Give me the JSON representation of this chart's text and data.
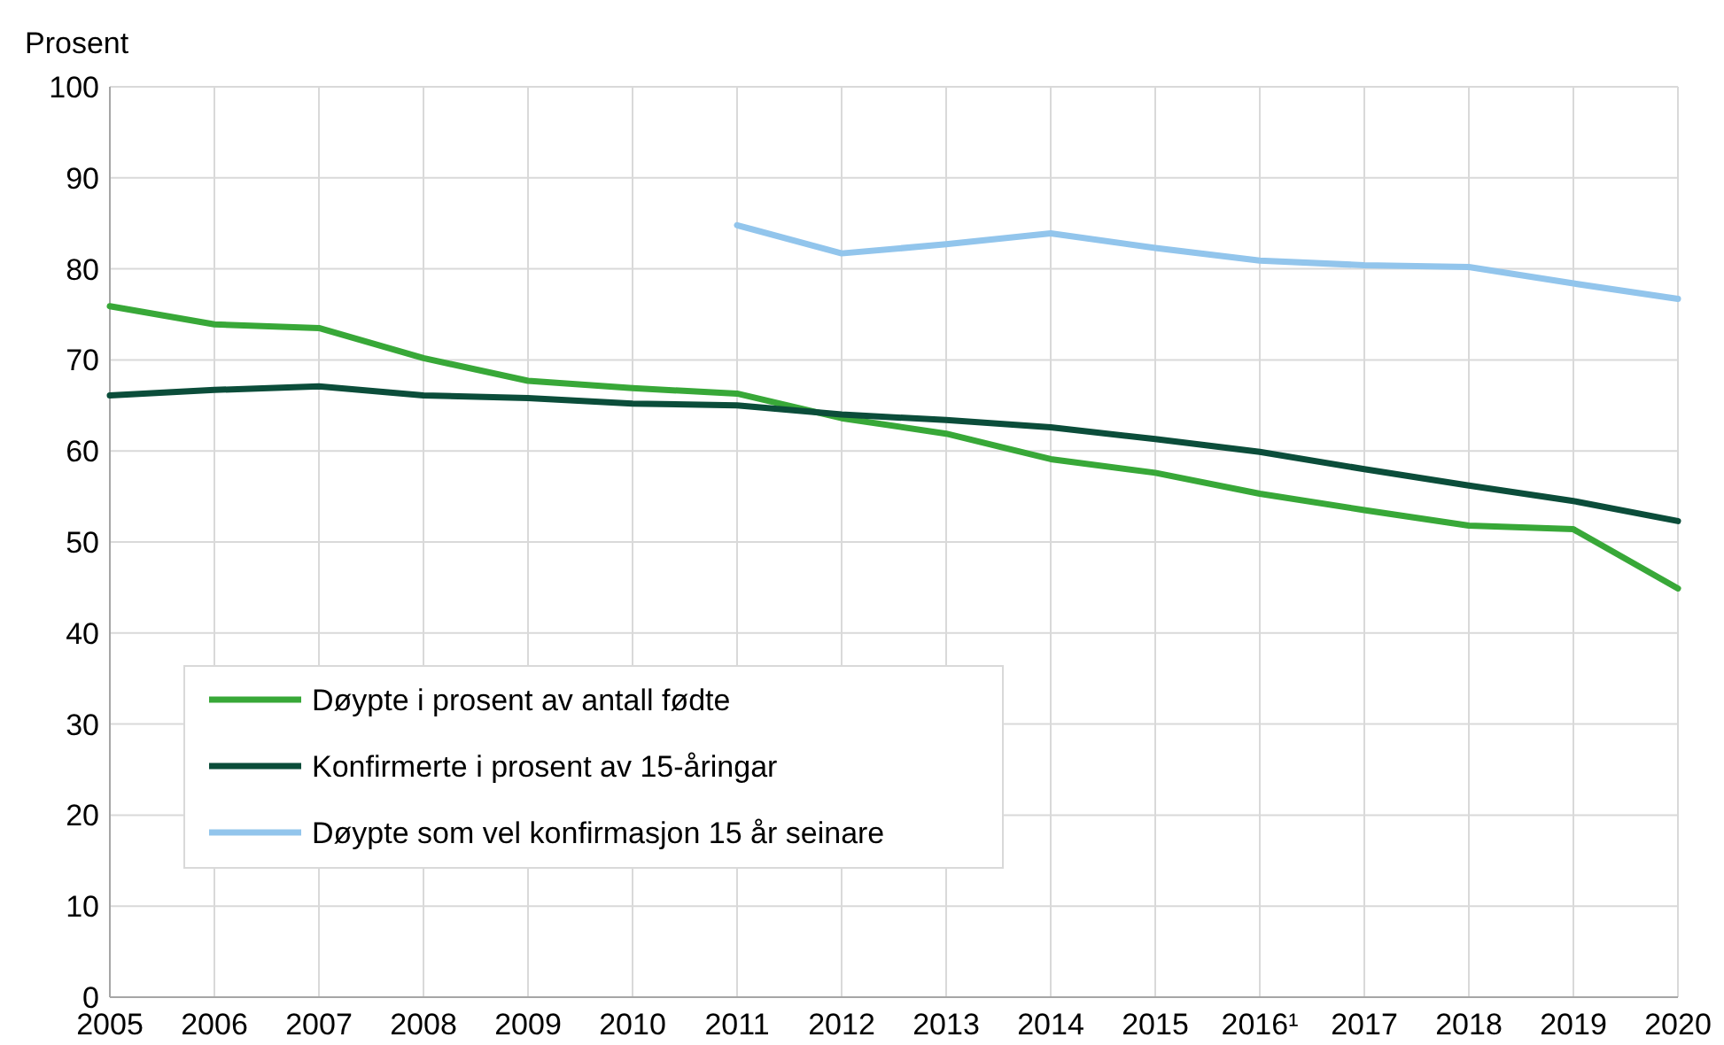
{
  "chart_data": {
    "type": "line",
    "ylabel": "Prosent",
    "categories": [
      "2005",
      "2006",
      "2007",
      "2008",
      "2009",
      "2010",
      "2011",
      "2012",
      "2013",
      "2014",
      "2015",
      "2016¹",
      "2017",
      "2018",
      "2019",
      "2020"
    ],
    "series": [
      {
        "name": "Døypte i prosent av antall fødte",
        "color": "#38a838",
        "values": [
          75.9,
          73.9,
          73.5,
          70.2,
          67.7,
          66.9,
          66.3,
          63.6,
          61.9,
          59.1,
          57.6,
          55.3,
          53.5,
          51.8,
          51.4,
          44.9
        ]
      },
      {
        "name": "Konfirmerte i prosent av 15-åringar",
        "color": "#0b4d3a",
        "values": [
          66.1,
          66.7,
          67.1,
          66.1,
          65.8,
          65.2,
          65.0,
          64.0,
          63.4,
          62.6,
          61.3,
          59.9,
          58.0,
          56.2,
          54.5,
          52.3
        ]
      },
      {
        "name": "Døypte som vel konfirmasjon 15 år seinare",
        "color": "#92c5ec",
        "values": [
          null,
          null,
          null,
          null,
          null,
          null,
          84.8,
          81.7,
          82.7,
          83.9,
          82.3,
          80.9,
          80.4,
          80.2,
          78.4,
          76.7
        ]
      }
    ],
    "ylim": [
      0,
      100
    ],
    "yticks": [
      0,
      10,
      20,
      30,
      40,
      50,
      60,
      70,
      80,
      90,
      100
    ],
    "grid": true,
    "legend": "bottom left",
    "line_style": "solid",
    "marker": "none"
  }
}
